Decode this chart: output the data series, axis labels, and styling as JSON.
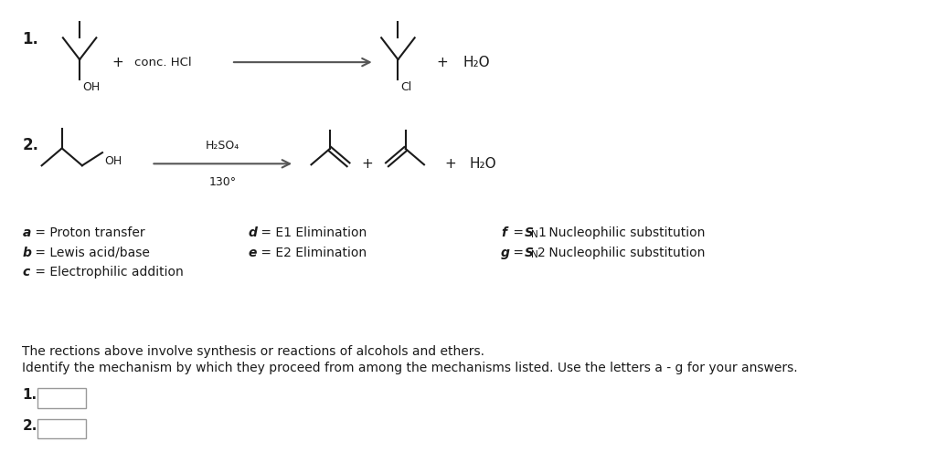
{
  "bg_color": "#ffffff",
  "text_color": "#1a1a1a",
  "line1_num": "1.",
  "line2_num": "2.",
  "reaction1_reagent": "conc. HCl",
  "reaction2_reagent_top": "H₂SO₄",
  "reaction2_reagent_bot": "130°",
  "product1_label": "Cl",
  "product1_water": "H₂O",
  "product2_water": "H₂O",
  "mech_col1": [
    "a = Proton transfer",
    "b = Lewis acid/base",
    "c = Electrophilic addition"
  ],
  "mech_col2": [
    "d = E1 Elimination",
    "e = E2 Elimination",
    ""
  ],
  "mech_col3_f": "f = S_N1 Nucleophilic substitution",
  "mech_col3_g": "g = S_N2 Nucleophilic substitution",
  "desc_line1": "The rections above involve synthesis or reactions of alcohols and ethers.",
  "desc_line2": "Identify the mechanism by which they proceed from among the mechanisms listed. Use the letters a - g for your answers.",
  "box_label1": "1.",
  "box_label2": "2.",
  "plus_sign": "+"
}
